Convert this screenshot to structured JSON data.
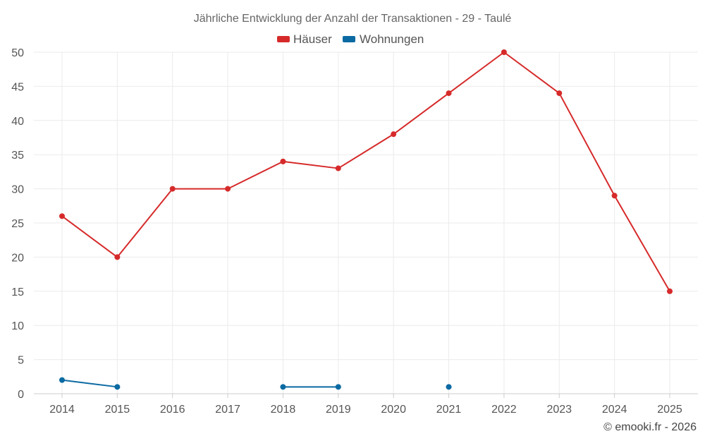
{
  "chart_data": {
    "type": "line",
    "title": "Jährliche Entwicklung der Anzahl der Transaktionen - 29 - Taulé",
    "categories": [
      "2014",
      "2015",
      "2016",
      "2017",
      "2018",
      "2019",
      "2020",
      "2021",
      "2022",
      "2023",
      "2024",
      "2025"
    ],
    "series": [
      {
        "name": "Häuser",
        "color": "#d62a2a",
        "values": [
          26,
          20,
          30,
          30,
          34,
          33,
          38,
          44,
          50,
          44,
          29,
          15
        ]
      },
      {
        "name": "Wohnungen",
        "color": "#0b6aa2",
        "values": [
          2,
          1,
          null,
          null,
          1,
          1,
          null,
          1,
          null,
          null,
          null,
          null
        ]
      }
    ],
    "ylim": [
      0,
      50
    ],
    "yticks": [
      0,
      5,
      10,
      15,
      20,
      25,
      30,
      35,
      40,
      45,
      50
    ],
    "grid": true,
    "legend": "top-center",
    "xlabel": "",
    "ylabel": ""
  },
  "copyright": "© emooki.fr - 2026"
}
